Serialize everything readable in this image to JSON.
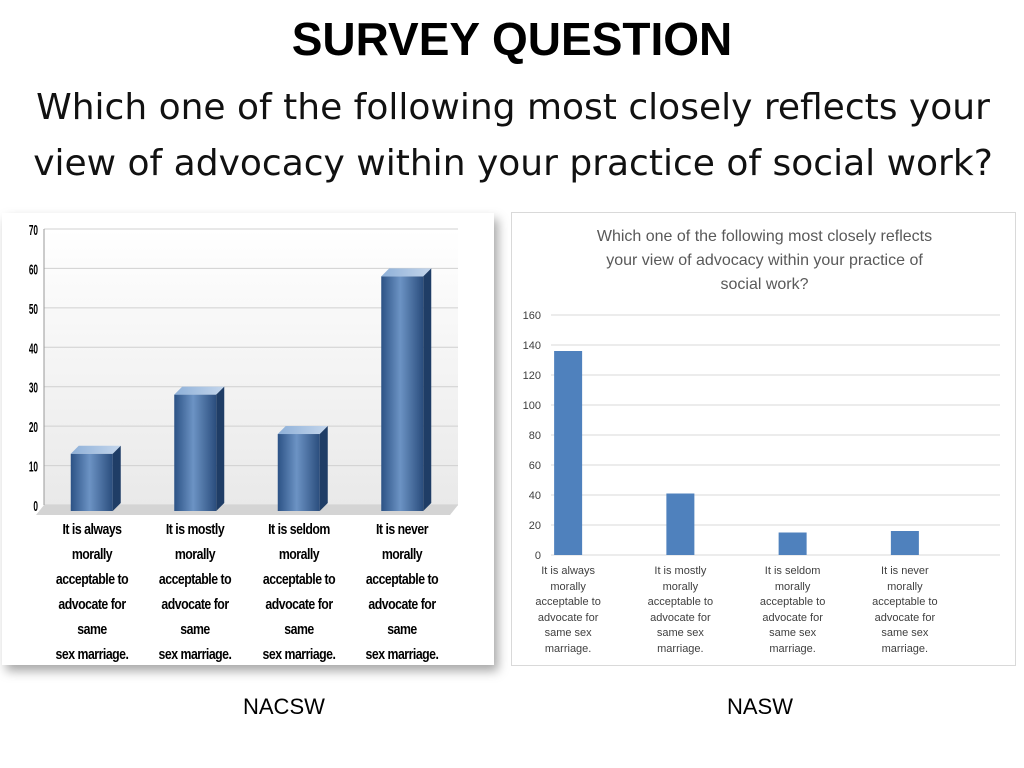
{
  "slide": {
    "title": "SURVEY QUESTION",
    "subtitle_line1": "Which one of the following most closely reflects your",
    "subtitle_line2": "view of advocacy within your practice of social work?"
  },
  "captions": {
    "left": "NACSW",
    "right": "NASW"
  },
  "colors": {
    "left_bar": "#3f6aa0",
    "right_bar": "#4f81bd",
    "grid": "#d9d9d9"
  },
  "chart_data": [
    {
      "type": "bar",
      "name": "NACSW",
      "title": "",
      "categories": [
        "It is always morally acceptable to advocate for same sex marriage.",
        "It is mostly morally acceptable to advocate for same sex marriage.",
        "It is seldom morally acceptable to advocate for same sex marriage.",
        "It is never morally acceptable to advocate for same sex marriage."
      ],
      "category_lines": [
        [
          "It is always morally",
          "acceptable to",
          "advocate for same",
          "sex marriage."
        ],
        [
          "It is mostly morally",
          "acceptable to",
          "advocate for same",
          "sex marriage."
        ],
        [
          "It is seldom morally",
          "acceptable to",
          "advocate for same",
          "sex marriage."
        ],
        [
          "It is never morally",
          "acceptable to",
          "advocate for same",
          "sex marriage."
        ]
      ],
      "values": [
        13,
        28,
        18,
        58
      ],
      "ylim": [
        0,
        70
      ],
      "yticks": [
        0,
        10,
        20,
        30,
        40,
        50,
        60,
        70
      ],
      "grid": true,
      "style": "3d-cylinder"
    },
    {
      "type": "bar",
      "name": "NASW",
      "title": "Which one of the following most closely reflects your view of advocacy within your practice of social work?",
      "title_lines": [
        "Which one of the following most closely reflects",
        "your view of advocacy within your practice of",
        "social work?"
      ],
      "categories": [
        "It is always morally acceptable to advocate for same sex marriage.",
        "It is mostly morally acceptable to advocate for same sex marriage.",
        "It is seldom morally acceptable to advocate for same sex marriage.",
        "It is never morally acceptable to advocate for same sex marriage."
      ],
      "category_lines": [
        [
          "It is always",
          "morally",
          "acceptable to",
          "advocate for",
          "same sex",
          "marriage."
        ],
        [
          "It is mostly",
          "morally",
          "acceptable to",
          "advocate for",
          "same sex",
          "marriage."
        ],
        [
          "It is seldom",
          "morally",
          "acceptable to",
          "advocate for",
          "same sex",
          "marriage."
        ],
        [
          "It is never",
          "morally",
          "acceptable to",
          "advocate for",
          "same sex",
          "marriage."
        ]
      ],
      "values": [
        136,
        41,
        15,
        16
      ],
      "ylim": [
        0,
        160
      ],
      "yticks": [
        0,
        20,
        40,
        60,
        80,
        100,
        120,
        140,
        160
      ],
      "grid": true
    }
  ]
}
